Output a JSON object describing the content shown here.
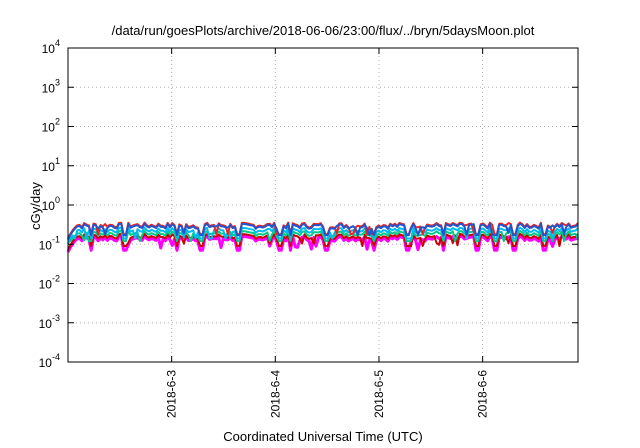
{
  "chart_data": {
    "type": "line",
    "title": "/data/run/goesPlots/archive/2018-06-06/23:00/flux/../bryn/5daysMoon.plot",
    "xlabel": "Coordinated Universal Time (UTC)",
    "ylabel": "cGy/day",
    "yscale": "log",
    "ylim": [
      0.0001,
      10000
    ],
    "y_ticks": [
      {
        "base": "10",
        "exp": "-4"
      },
      {
        "base": "10",
        "exp": "-3"
      },
      {
        "base": "10",
        "exp": "-2"
      },
      {
        "base": "10",
        "exp": "-1"
      },
      {
        "base": "10",
        "exp": "0"
      },
      {
        "base": "10",
        "exp": "1"
      },
      {
        "base": "10",
        "exp": "2"
      },
      {
        "base": "10",
        "exp": "3"
      },
      {
        "base": "10",
        "exp": "4"
      }
    ],
    "x_tick_labels": [
      "2018-6-3",
      "2018-6-4",
      "2018-6-5",
      "2018-6-6"
    ],
    "xlim_days": [
      2.0,
      6.92
    ],
    "x_tick_days": [
      3,
      4,
      5,
      6
    ],
    "grid": true,
    "series_colors": [
      "#ff00ff",
      "#cc0000",
      "#00cc88",
      "#00bbee",
      "#2255cc",
      "#ee2222"
    ],
    "series": [
      {
        "color": "#ff00ff",
        "baseline": 0.14,
        "dip": 0.07
      },
      {
        "color": "#cc0000",
        "baseline": 0.16,
        "dip": 0.09
      },
      {
        "color": "#00cc88",
        "baseline": 0.19,
        "dip": 0.12
      },
      {
        "color": "#00bbee",
        "baseline": 0.23,
        "dip": 0.14
      },
      {
        "color": "#ee2222",
        "baseline": 0.31,
        "dip": 0.18
      },
      {
        "color": "#2255cc",
        "baseline": 0.29,
        "dip": 0.17
      }
    ],
    "dip_days": [
      2.22,
      2.55,
      3.05,
      3.28,
      3.65,
      4.05,
      4.15,
      4.5,
      4.95,
      5.28,
      5.62,
      5.95,
      6.12,
      6.3,
      6.6
    ]
  }
}
